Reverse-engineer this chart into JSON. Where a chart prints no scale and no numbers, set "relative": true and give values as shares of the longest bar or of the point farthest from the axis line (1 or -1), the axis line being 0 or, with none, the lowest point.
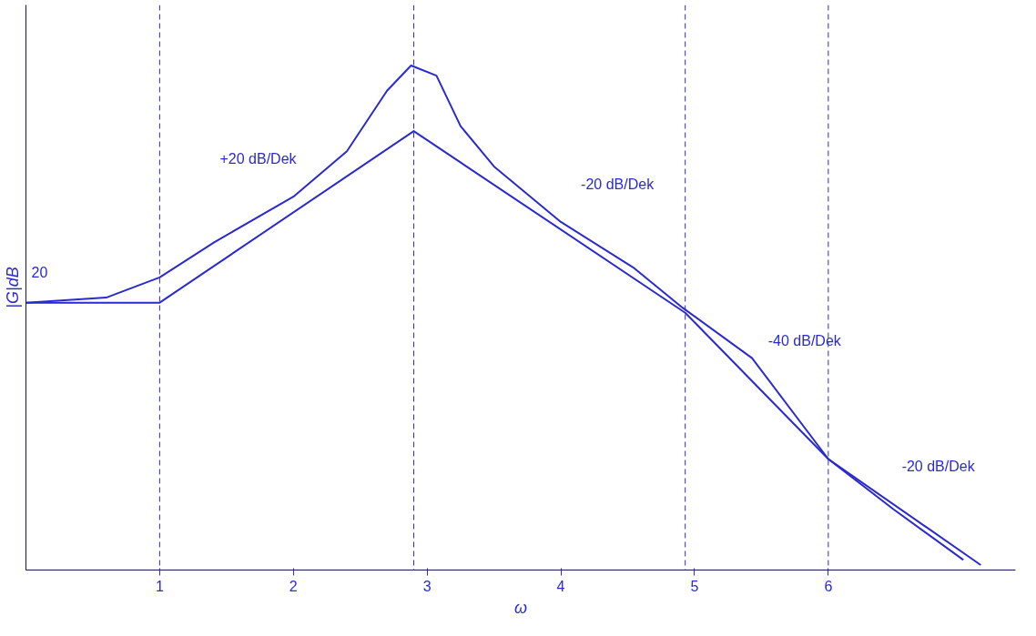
{
  "chart_data": {
    "type": "line",
    "relative": true,
    "xlabel": "ω",
    "ylabel": "|G|dB",
    "xlim": [
      0,
      7.4
    ],
    "xticks": [
      1,
      2,
      3,
      4,
      5,
      6
    ],
    "grid": false,
    "marker": "none",
    "line_style": "solid",
    "series": [
      {
        "color": "#2a2ad0",
        "x": [
          0,
          1,
          2.9,
          4.93,
          6,
          7.14
        ],
        "values": [
          0.53,
          0.53,
          0.87,
          0.51,
          0.22,
          0.01
        ]
      },
      {
        "color": "#2a2ad0",
        "x": [
          0,
          0.6,
          1,
          1.41,
          2,
          2.4,
          2.7,
          2.88,
          3.07,
          3.25,
          3.5,
          4,
          4.54,
          4.91,
          5.43,
          6,
          6.49,
          7.01
        ],
        "values": [
          0.53,
          0.54,
          0.58,
          0.65,
          0.74,
          0.83,
          0.95,
          1.0,
          0.98,
          0.88,
          0.8,
          0.69,
          0.6,
          0.52,
          0.42,
          0.22,
          0.12,
          0.02
        ]
      }
    ],
    "ref_lines": [
      {
        "axis": "x",
        "value": 1,
        "line_style": "dashed"
      },
      {
        "axis": "x",
        "value": 2.9,
        "line_style": "dashed"
      },
      {
        "axis": "x",
        "value": 4.93,
        "line_style": "dashed"
      },
      {
        "axis": "x",
        "value": 6,
        "line_style": "dashed"
      }
    ],
    "annotations": [
      "20",
      "+20 dB/Dek",
      "-20 dB/Dek",
      "-40 dB/Dek",
      "-20 dB/Dek"
    ]
  }
}
